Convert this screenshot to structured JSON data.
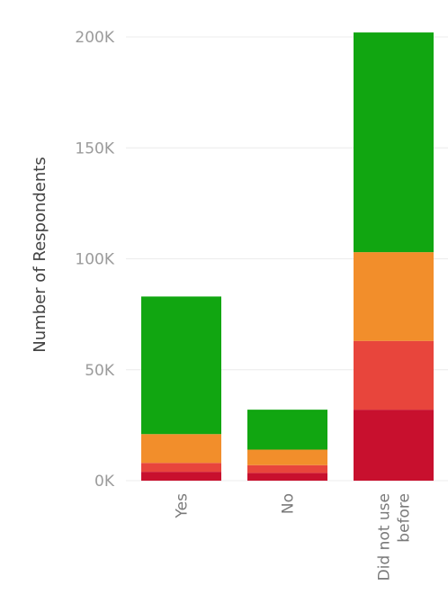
{
  "chart_data": {
    "type": "bar",
    "stacked": true,
    "title": "",
    "xlabel": "",
    "ylabel": "Number of Respondents",
    "ylim": [
      0,
      210000
    ],
    "yticks": [
      {
        "value": 0,
        "label": "0K"
      },
      {
        "value": 50000,
        "label": "50K"
      },
      {
        "value": 100000,
        "label": "100K"
      },
      {
        "value": 150000,
        "label": "150K"
      },
      {
        "value": 200000,
        "label": "200K"
      }
    ],
    "categories": [
      [
        "Yes"
      ],
      [
        "No"
      ],
      [
        "Did not use",
        "before"
      ]
    ],
    "grid": true,
    "legend": "none",
    "series": [
      {
        "color": "#c8102e",
        "values": [
          4000,
          3500,
          32000
        ]
      },
      {
        "color": "#e8453c",
        "values": [
          4000,
          3500,
          31000
        ]
      },
      {
        "color": "#f28e2b",
        "values": [
          13000,
          7000,
          40000
        ]
      },
      {
        "color": "#11a611",
        "values": [
          62000,
          18000,
          99000
        ]
      }
    ]
  }
}
